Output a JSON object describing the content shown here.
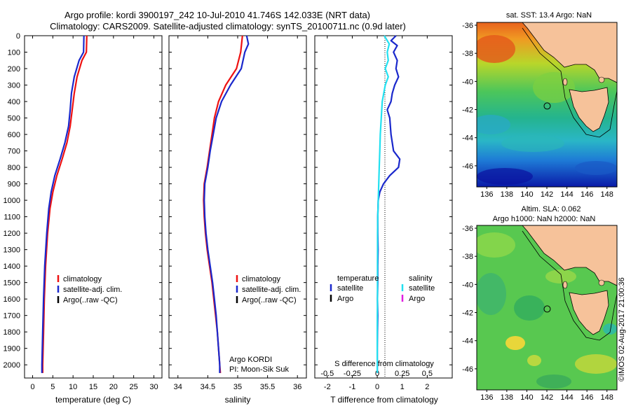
{
  "figure": {
    "title_line1": "Argo profile: kordi 3900197_242 10-Jul-2010 41.746S 142.033E (NRT data)",
    "title_line2": "Climatology: CARS2009. Satellite-adjusted climatology: synTS_20100711.nc (0.9d later)",
    "footer": "©IMOS 02-Aug-2017 21:00:36"
  },
  "colors": {
    "climatology": "#ee1111",
    "satellite": "#1a28cc",
    "argo": "#000000",
    "salinity_satellite": "#22e0f0",
    "salinity_argo": "#e020e0",
    "land": "#f6c29a"
  },
  "chart_data": [
    {
      "id": "temperature",
      "type": "line",
      "xlabel": "temperature (deg C)",
      "xlim": [
        -2,
        32
      ],
      "xticks": [
        0,
        5,
        10,
        15,
        20,
        25,
        30
      ],
      "ylim": [
        2080,
        0
      ],
      "yticks": [
        0,
        100,
        200,
        300,
        400,
        500,
        600,
        700,
        800,
        900,
        1000,
        1100,
        1200,
        1300,
        1400,
        1500,
        1600,
        1700,
        1800,
        1900,
        2000
      ],
      "legend": [
        "climatology",
        "satellite-adj. clim.",
        "Argo(..raw -QC)"
      ],
      "series": [
        {
          "name": "climatology",
          "color_key": "climatology",
          "depth": [
            0,
            100,
            150,
            250,
            350,
            450,
            550,
            650,
            750,
            850,
            950,
            1050,
            1200,
            1400,
            1600,
            1800,
            2000,
            2050
          ],
          "values": [
            13.4,
            13.3,
            12.2,
            11.0,
            10.3,
            9.8,
            9.3,
            8.5,
            7.3,
            6.0,
            5.0,
            4.3,
            3.7,
            3.2,
            2.9,
            2.7,
            2.5,
            2.5
          ]
        },
        {
          "name": "satellite-adj. clim.",
          "color_key": "satellite",
          "depth": [
            0,
            100,
            150,
            250,
            350,
            450,
            550,
            650,
            750,
            850,
            950,
            1050,
            1200,
            1400,
            1600,
            1800,
            2000,
            2050
          ],
          "values": [
            12.7,
            12.6,
            11.5,
            10.3,
            9.6,
            9.3,
            8.9,
            8.0,
            6.8,
            5.5,
            4.6,
            4.0,
            3.5,
            3.0,
            2.7,
            2.5,
            2.3,
            2.3
          ]
        }
      ]
    },
    {
      "id": "salinity",
      "type": "line",
      "xlabel": "salinity",
      "xlim": [
        33.85,
        36.15
      ],
      "xticks": [
        34,
        34.5,
        35,
        35.5,
        36
      ],
      "xticklabels": [
        "34",
        "34.5",
        "35",
        "35.5",
        "36"
      ],
      "ylim": [
        2080,
        0
      ],
      "legend": [
        "climatology",
        "satellite-adj. clim.",
        "Argo(..raw -QC)"
      ],
      "annotation": [
        "Argo KORDI",
        "PI: Moon-Sik Suk"
      ],
      "series": [
        {
          "name": "climatology",
          "color_key": "climatology",
          "depth": [
            0,
            100,
            200,
            300,
            400,
            500,
            600,
            700,
            800,
            900,
            1000,
            1100,
            1200,
            1300,
            1400,
            1500,
            1600,
            1700,
            1800,
            1900,
            2000,
            2050
          ],
          "values": [
            35.08,
            35.05,
            34.98,
            34.8,
            34.68,
            34.61,
            34.57,
            34.53,
            34.49,
            34.44,
            34.43,
            34.44,
            34.46,
            34.49,
            34.53,
            34.57,
            34.6,
            34.63,
            34.66,
            34.68,
            34.7,
            34.71
          ]
        },
        {
          "name": "satellite-adj. clim.",
          "color_key": "satellite",
          "depth": [
            0,
            50,
            100,
            200,
            300,
            400,
            500,
            600,
            700,
            800,
            900,
            1000,
            1100,
            1200,
            1300,
            1400,
            1500,
            1600,
            1700,
            1800,
            1900,
            2000,
            2050
          ],
          "values": [
            35.15,
            35.18,
            35.12,
            35.06,
            34.88,
            34.73,
            34.64,
            34.59,
            34.54,
            34.5,
            34.45,
            34.44,
            34.45,
            34.47,
            34.5,
            34.54,
            34.58,
            34.61,
            34.64,
            34.66,
            34.68,
            34.7,
            34.7
          ]
        }
      ]
    },
    {
      "id": "difference",
      "type": "line",
      "xlabel": "T difference from climatology",
      "xlabel2": "S difference from climatology",
      "xlim": [
        -2.5,
        3.0
      ],
      "xticks": [
        -2,
        -1,
        0,
        1,
        2
      ],
      "xticks_s": [
        -0.5,
        -0.25,
        0,
        0.25,
        0.5
      ],
      "xticklabels_s": [
        "-0.5",
        "-0.25",
        "0",
        "0.25",
        "0.5"
      ],
      "ylim": [
        2080,
        0
      ],
      "legend_t_title": "temperature",
      "legend_s_title": "salinity",
      "legend_t": [
        "satellite",
        "Argo"
      ],
      "legend_s": [
        "satellite",
        "Argo"
      ],
      "series": [
        {
          "name": "satellite",
          "group": "temperature",
          "color_key": "satellite",
          "depth": [
            0,
            30,
            60,
            100,
            150,
            200,
            250,
            300,
            350,
            400,
            450,
            500,
            600,
            700,
            750,
            800,
            850,
            900,
            950,
            1000,
            1100,
            1200,
            1300,
            1400,
            1500,
            1600,
            1700,
            1800,
            1900,
            2000,
            2050
          ],
          "values": [
            0.75,
            0.55,
            0.8,
            0.65,
            0.8,
            0.75,
            0.85,
            0.7,
            0.6,
            0.55,
            0.4,
            0.5,
            0.55,
            0.65,
            0.9,
            0.85,
            0.5,
            0.25,
            0.1,
            0.04,
            0.02,
            0.02,
            0.03,
            0.02,
            0.02,
            0.01,
            0.02,
            0.01,
            0.0,
            0.0,
            0.0
          ]
        },
        {
          "name": "satellite",
          "group": "salinity",
          "color_key": "salinity_satellite",
          "depth": [
            0,
            50,
            100,
            150,
            200,
            250,
            300,
            400,
            500,
            600,
            700,
            800,
            900,
            1000,
            1100,
            1200,
            1300,
            1400,
            1500,
            1600,
            1700,
            1800,
            1900,
            2000,
            2050
          ],
          "values": [
            0.07,
            0.12,
            0.1,
            0.11,
            0.08,
            0.11,
            0.08,
            0.05,
            0.04,
            0.03,
            0.025,
            0.02,
            0.015,
            0.01,
            0.005,
            0.003,
            0.003,
            0.002,
            0.002,
            0.002,
            0.001,
            0.0,
            0.0,
            0.0,
            0.0
          ]
        }
      ]
    },
    {
      "id": "sst-map",
      "type": "heatmap",
      "title": "sat. SST: 13.4  Argo: NaN",
      "xlim": [
        135,
        149
      ],
      "ylim": [
        -47.5,
        -35.8
      ],
      "xticks": [
        136,
        138,
        140,
        142,
        144,
        146,
        148
      ],
      "yticks": [
        -36,
        -38,
        -40,
        -42,
        -44,
        -46
      ],
      "marker": {
        "lon": 142.033,
        "lat": -41.746
      }
    },
    {
      "id": "sla-map",
      "type": "heatmap",
      "title_line1": "Altim. SLA: 0.062",
      "title_line2": "Argo h1000: NaN h2000: NaN",
      "xlim": [
        135,
        149
      ],
      "ylim": [
        -47.5,
        -35.8
      ],
      "xticks": [
        136,
        138,
        140,
        142,
        144,
        146,
        148
      ],
      "yticks": [
        -36,
        -38,
        -40,
        -42,
        -44,
        -46
      ],
      "marker": {
        "lon": 142.033,
        "lat": -41.746
      }
    }
  ]
}
